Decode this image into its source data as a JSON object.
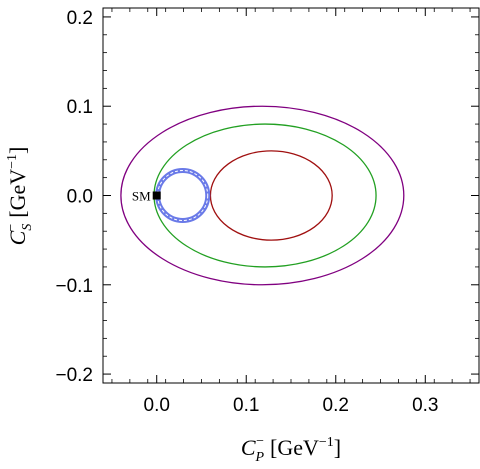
{
  "chart_data": {
    "type": "scatter",
    "title": "",
    "xlabel": {
      "base": "C",
      "sub": "P",
      "sup": "−",
      "unit": "[GeV",
      "unit_exp": "−1",
      "unit_close": "]"
    },
    "ylabel": {
      "base": "C",
      "sub": "S",
      "sup": "−",
      "unit": "[GeV",
      "unit_exp": "−1",
      "unit_close": "]"
    },
    "xlim": [
      -0.06,
      0.36
    ],
    "ylim": [
      -0.21,
      0.21
    ],
    "xticks": [
      0.0,
      0.1,
      0.2,
      0.3
    ],
    "xtick_labels": [
      "0.0",
      "0.1",
      "0.2",
      "0.3"
    ],
    "yticks": [
      -0.2,
      -0.1,
      0.0,
      0.1,
      0.2
    ],
    "ytick_labels": [
      "−0.2",
      "−0.1",
      "0.0",
      "0.1",
      "0.2"
    ],
    "grid": false,
    "contours": [
      {
        "color": "#800080",
        "cx": 0.118,
        "cy": 0.0,
        "rx": 0.158,
        "ry": 0.1
      },
      {
        "color": "#22a022",
        "cx": 0.121,
        "cy": 0.0,
        "rx": 0.124,
        "ry": 0.08
      },
      {
        "color": "#a01010",
        "cx": 0.128,
        "cy": 0.0,
        "rx": 0.068,
        "ry": 0.05
      }
    ],
    "band": {
      "color": "#6a7ae8",
      "cx": 0.029,
      "cy": 0.0,
      "r": 0.028
    },
    "point": {
      "label": "SM",
      "x": 0.0,
      "y": 0.0,
      "color": "#000000"
    }
  }
}
